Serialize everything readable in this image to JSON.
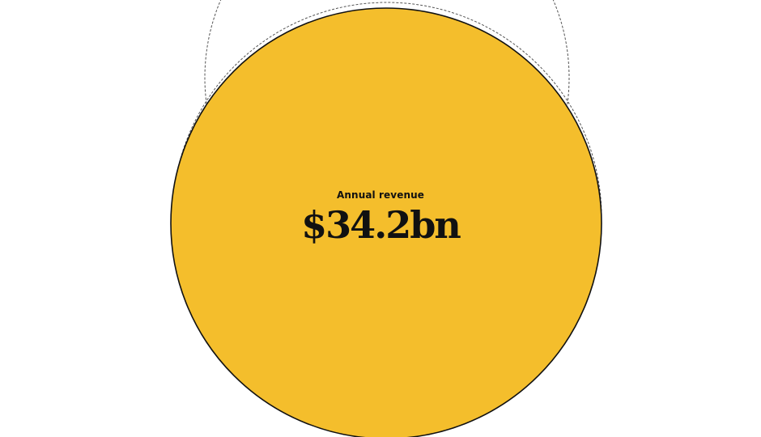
{
  "chart_data": {
    "type": "bubble",
    "bubbles": [
      {
        "label": "Annual revenue",
        "value_text": "$34.2bn",
        "value": 34.2,
        "unit": "bn",
        "fill": "#F4BE2C",
        "stroke": "#111111"
      }
    ],
    "outline_bubbles": [
      {
        "stroke": "#555555",
        "style": "dashed"
      },
      {
        "stroke": "#555555",
        "style": "dashed"
      }
    ]
  }
}
